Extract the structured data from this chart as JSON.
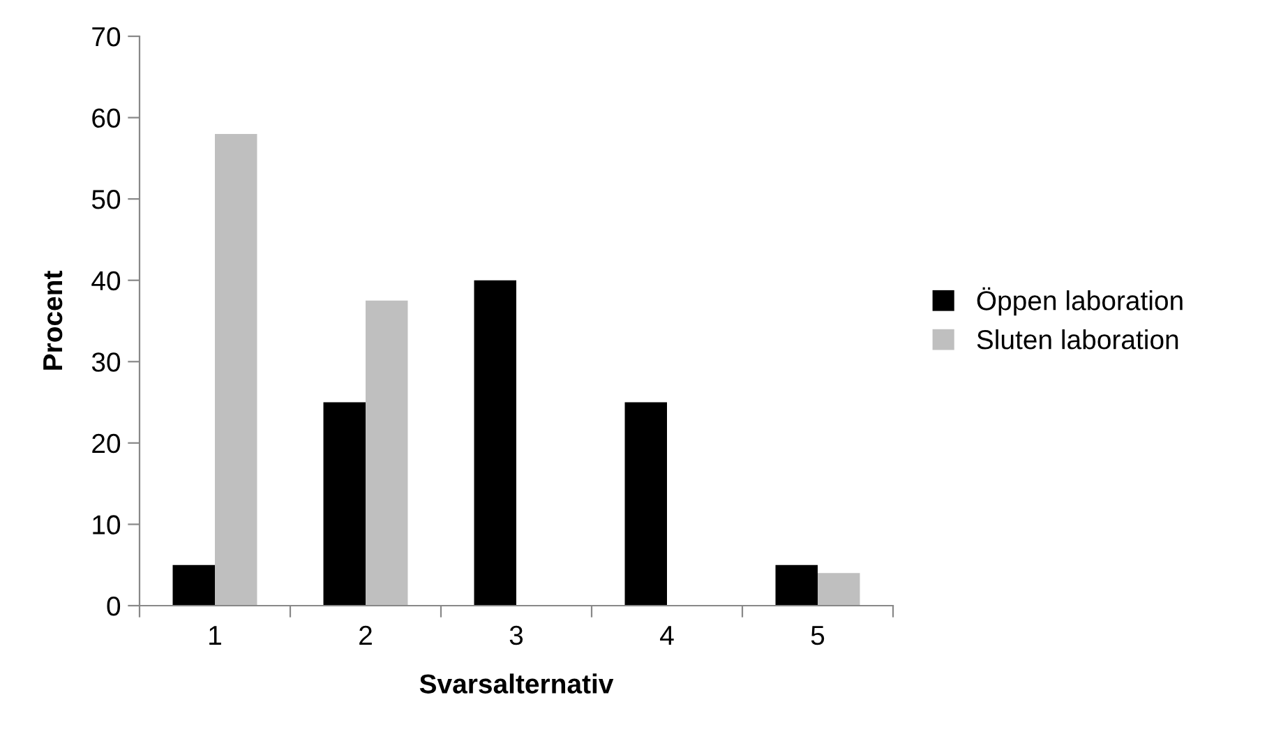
{
  "chart_data": {
    "type": "bar",
    "xlabel": "Svarsalternativ",
    "ylabel": "Procent",
    "categories": [
      "1",
      "2",
      "3",
      "4",
      "5"
    ],
    "series": [
      {
        "name": "Öppen laboration",
        "color": "#000000",
        "values": [
          5,
          25,
          40,
          25,
          5
        ]
      },
      {
        "name": "Sluten laboration",
        "color": "#bfbfbf",
        "values": [
          58,
          37.5,
          0,
          0,
          4
        ]
      }
    ],
    "ylim": [
      0,
      70
    ],
    "yticks": [
      0,
      10,
      20,
      30,
      40,
      50,
      60,
      70
    ],
    "grid": false,
    "legend": "right"
  }
}
